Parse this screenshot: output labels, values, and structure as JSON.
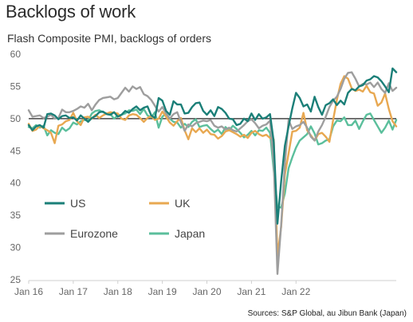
{
  "title": "Backlogs of work",
  "subtitle": "Flash Composite PMI, backlogs of orders",
  "source": "Sources: S&P Global, au Jibun Bank (Japan)",
  "chart_data": {
    "type": "line",
    "title": "Backlogs of work",
    "subtitle": "Flash Composite PMI, backlogs of orders",
    "ylim": [
      25,
      60
    ],
    "yticks": [
      25,
      30,
      35,
      40,
      45,
      50,
      55,
      60
    ],
    "x_start": "2016-01",
    "x_end": "2022-04",
    "xticks": [
      "Jan 16",
      "Jan 17",
      "Jan 18",
      "Jan 19",
      "Jan 20",
      "Jan 21",
      "Jan 22"
    ],
    "reference_line": 50,
    "legend_position": "lower-left, two columns",
    "grid": false,
    "series": [
      {
        "name": "US",
        "color": "#1b7f78",
        "values": [
          49.0,
          48.2,
          48.8,
          49.0,
          48.6,
          50.7,
          50.8,
          50.5,
          49.9,
          50.4,
          50.5,
          50.1,
          50.2,
          49.7,
          50.5,
          50.0,
          49.5,
          50.1,
          50.4,
          51.0,
          51.1,
          50.7,
          50.6,
          51.0,
          50.3,
          50.6,
          51.2,
          50.9,
          51.5,
          51.9,
          51.3,
          51.7,
          51.9,
          50.5,
          50.1,
          53.2,
          52.8,
          51.2,
          50.6,
          52.7,
          52.2,
          52.2,
          50.8,
          50.9,
          51.8,
          52.4,
          52.5,
          51.2,
          50.6,
          51.3,
          50.4,
          51.8,
          51.5,
          50.9,
          50.0,
          49.9,
          49.0,
          49.2,
          50.0,
          49.6,
          50.8,
          49.8,
          50.7,
          50.0,
          50.2,
          50.7,
          46.4,
          33.7,
          40.3,
          45.8,
          48.8,
          51.6,
          54.0,
          53.2,
          51.9,
          52.2,
          51.1,
          53.4,
          51.8,
          50.6,
          52.1,
          52.4,
          53.0,
          52.1,
          52.8,
          52.2,
          54.0,
          54.6,
          54.4,
          55.0,
          55.2,
          55.9,
          56.1,
          56.6,
          56.4,
          55.8,
          55.0,
          54.1,
          57.8,
          57.2
        ]
      },
      {
        "name": "UK",
        "color": "#e8a851",
        "values": [
          49.2,
          48.1,
          48.3,
          48.9,
          48.5,
          48.2,
          47.8,
          46.2,
          48.9,
          49.1,
          49.6,
          49.8,
          50.9,
          49.6,
          49.0,
          50.2,
          50.3,
          50.0,
          50.6,
          50.1,
          50.5,
          50.8,
          51.0,
          50.9,
          50.8,
          50.0,
          49.8,
          50.5,
          50.7,
          50.6,
          50.1,
          49.5,
          50.1,
          50.4,
          49.8,
          50.0,
          51.1,
          50.3,
          49.4,
          48.9,
          49.6,
          50.1,
          48.2,
          46.8,
          48.5,
          47.9,
          48.5,
          47.8,
          48.3,
          47.6,
          47.5,
          46.9,
          47.3,
          48.0,
          48.2,
          47.9,
          47.6,
          47.2,
          47.5,
          47.0,
          47.8,
          48.1,
          47.6,
          47.3,
          47.5,
          47.0,
          46.8,
          28.7,
          33.2,
          41.3,
          44.6,
          48.0,
          48.1,
          48.6,
          50.9,
          48.2,
          47.4,
          46.6,
          47.6,
          47.8,
          47.2,
          46.4,
          49.8,
          52.9,
          55.4,
          56.6,
          56.2,
          54.7,
          54.3,
          54.5,
          54.2,
          55.1,
          54.1,
          53.9,
          52.0,
          52.5,
          53.9,
          51.5,
          49.6,
          48.8
        ]
      },
      {
        "name": "Eurozone",
        "color": "#9e9e9e",
        "values": [
          51.3,
          50.3,
          50.4,
          50.5,
          50.1,
          50.3,
          50.6,
          50.0,
          50.1,
          51.4,
          51.0,
          51.0,
          51.2,
          51.5,
          51.9,
          51.7,
          52.3,
          51.3,
          52.2,
          52.9,
          53.2,
          53.3,
          53.4,
          53.0,
          53.2,
          54.0,
          54.8,
          54.2,
          55.0,
          54.6,
          54.9,
          53.8,
          53.5,
          52.9,
          52.0,
          51.1,
          51.8,
          50.8,
          50.0,
          50.7,
          51.0,
          49.5,
          48.1,
          49.1,
          48.8,
          49.3,
          49.5,
          49.7,
          49.6,
          49.8,
          48.9,
          48.6,
          48.8,
          48.3,
          48.6,
          48.2,
          48.0,
          48.5,
          49.0,
          49.6,
          49.9,
          49.3,
          48.5,
          48.9,
          49.1,
          49.7,
          43.3,
          25.9,
          33.5,
          43.0,
          49.8,
          48.4,
          48.8,
          49.0,
          49.5,
          48.6,
          47.2,
          46.6,
          48.0,
          49.0,
          50.3,
          51.8,
          52.8,
          53.4,
          54.6,
          56.2,
          57.1,
          57.2,
          56.2,
          55.0,
          55.4,
          55.3,
          55.6,
          54.9,
          55.6,
          54.6,
          54.0,
          55.5,
          54.3,
          54.8
        ]
      },
      {
        "name": "Japan",
        "color": "#5bbf9c",
        "values": [
          48.7,
          48.5,
          49.0,
          48.6,
          48.9,
          47.4,
          48.2,
          47.8,
          47.6,
          48.6,
          48.1,
          48.5,
          49.4,
          49.1,
          49.6,
          49.8,
          49.7,
          50.8,
          51.2,
          51.3,
          51.0,
          50.8,
          50.7,
          50.0,
          50.5,
          50.6,
          50.8,
          51.3,
          51.2,
          51.4,
          50.7,
          51.5,
          50.5,
          50.2,
          51.0,
          48.6,
          50.3,
          50.8,
          50.0,
          49.5,
          49.4,
          48.6,
          49.2,
          48.7,
          49.5,
          49.9,
          48.7,
          48.9,
          49.0,
          48.4,
          47.9,
          48.3,
          47.6,
          48.7,
          48.2,
          48.9,
          48.4,
          47.8,
          47.1,
          47.5,
          48.1,
          47.4,
          48.2,
          48.1,
          48.6,
          47.8,
          42.0,
          36.3,
          36.2,
          38.4,
          42.3,
          44.0,
          45.5,
          46.6,
          47.1,
          47.6,
          48.8,
          47.7,
          46.0,
          46.2,
          46.6,
          46.8,
          48.8,
          49.7,
          49.6,
          50.2,
          49.0,
          49.0,
          49.7,
          48.4,
          49.6,
          50.6,
          50.8,
          49.8,
          48.8,
          47.8,
          48.6,
          49.7,
          48.3,
          49.8
        ]
      }
    ]
  }
}
